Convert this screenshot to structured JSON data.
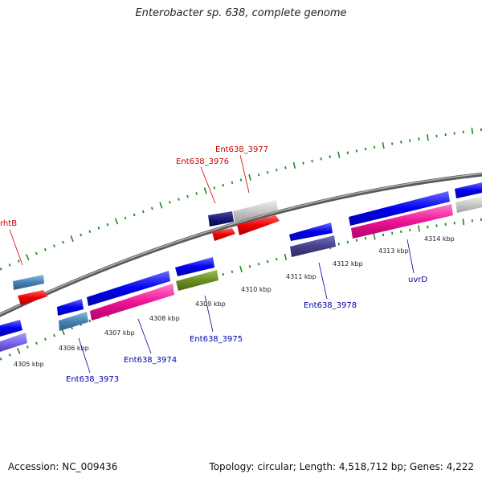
{
  "title": "Enterobacter sp. 638, complete genome",
  "footer": {
    "accession": "Accession: NC_009436",
    "summary": "Topology: circular; Length: 4,518,712 bp; Genes: 4,222"
  },
  "colors": {
    "backbone": "#7a7a7a",
    "tick": "#1e8a1e",
    "label_forward": "#cc0000",
    "label_reverse": "#0000aa"
  },
  "scale_labels": [
    "4305 kbp",
    "4306 kbp",
    "4307 kbp",
    "4308 kbp",
    "4309 kbp",
    "4310 kbp",
    "4311 kbp",
    "4312 kbp",
    "4313 kbp",
    "4314 kbp"
  ],
  "gene_labels": {
    "rhtB": "rhtB",
    "ent3976": "Ent638_3976",
    "ent3977": "Ent638_3977",
    "ent3973": "Ent638_3973",
    "ent3974": "Ent638_3974",
    "ent3975": "Ent638_3975",
    "ent3978": "Ent638_3978",
    "uvrD": "uvrD"
  }
}
